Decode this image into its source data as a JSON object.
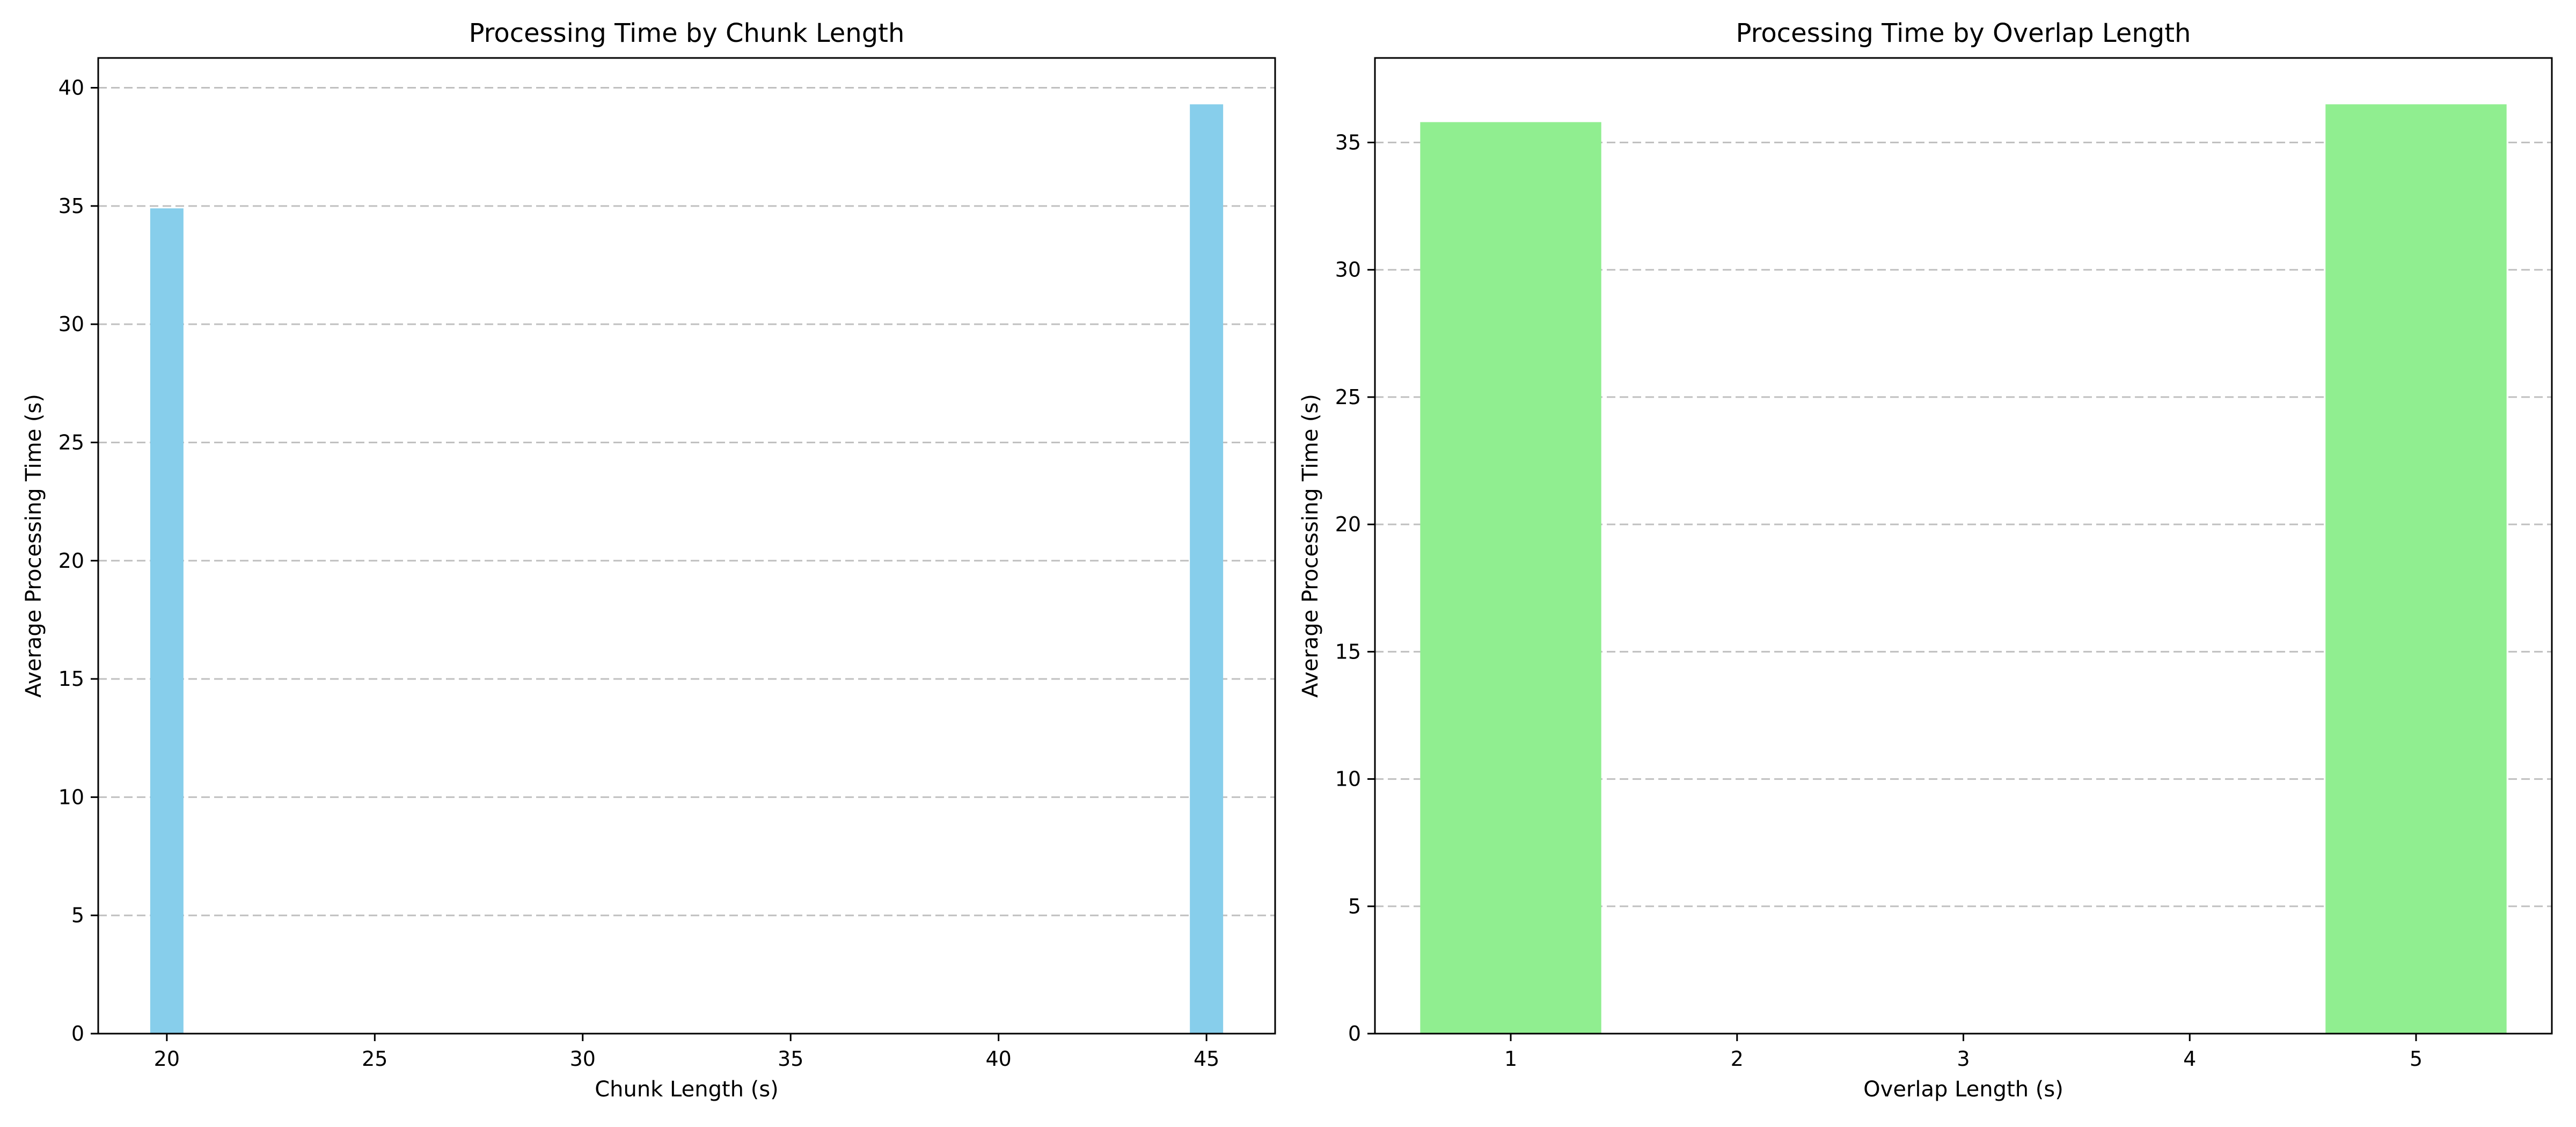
{
  "chart_data": [
    {
      "type": "bar",
      "title": "Processing Time by Chunk Length",
      "xlabel": "Chunk Length (s)",
      "ylabel": "Average Processing Time (s)",
      "x": [
        20,
        45
      ],
      "values": [
        34.9,
        39.3
      ],
      "bar_width": 0.8,
      "xlim": [
        18.35,
        46.65
      ],
      "ylim": [
        0,
        41.26
      ],
      "xticks": [
        20,
        25,
        30,
        35,
        40,
        45
      ],
      "yticks": [
        0,
        5,
        10,
        15,
        20,
        25,
        30,
        35,
        40
      ],
      "color": "#87ceeb",
      "grid": "y, dashed"
    },
    {
      "type": "bar",
      "title": "Processing Time by Overlap Length",
      "xlabel": "Overlap Length (s)",
      "ylabel": "Average Processing Time (s)",
      "x": [
        1,
        5
      ],
      "values": [
        35.8,
        36.5
      ],
      "bar_width": 0.8,
      "xlim": [
        0.4,
        5.6
      ],
      "ylim": [
        0,
        38.32
      ],
      "xticks": [
        1,
        2,
        3,
        4,
        5
      ],
      "yticks": [
        0,
        5,
        10,
        15,
        20,
        25,
        30,
        35
      ],
      "color": "#90ee90",
      "grid": "y, dashed"
    }
  ]
}
